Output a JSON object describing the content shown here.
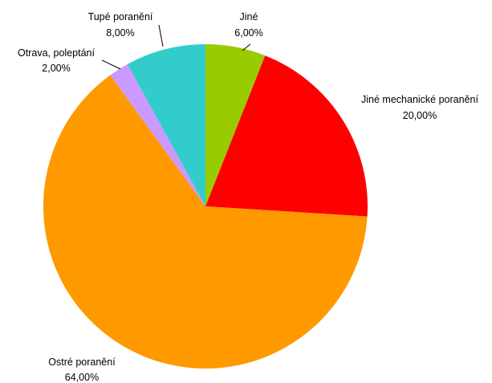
{
  "chart_data": {
    "type": "pie",
    "title": "",
    "start_angle_deg": 0,
    "direction": "clockwise",
    "slices": [
      {
        "label": "Jiné",
        "value": 6.0,
        "value_label": "6,00%",
        "color": "#99cc00"
      },
      {
        "label": "Jiné mechanické poranění",
        "value": 20.0,
        "value_label": "20,00%",
        "color": "#ff0000"
      },
      {
        "label": "Ostré poranění",
        "value": 64.0,
        "value_label": "64,00%",
        "color": "#ff9900"
      },
      {
        "label": "Otrava, poleptání",
        "value": 2.0,
        "value_label": "2,00%",
        "color": "#cc99ff"
      },
      {
        "label": "Tupé poranění",
        "value": 8.0,
        "value_label": "8,00%",
        "color": "#33cccc"
      }
    ]
  }
}
